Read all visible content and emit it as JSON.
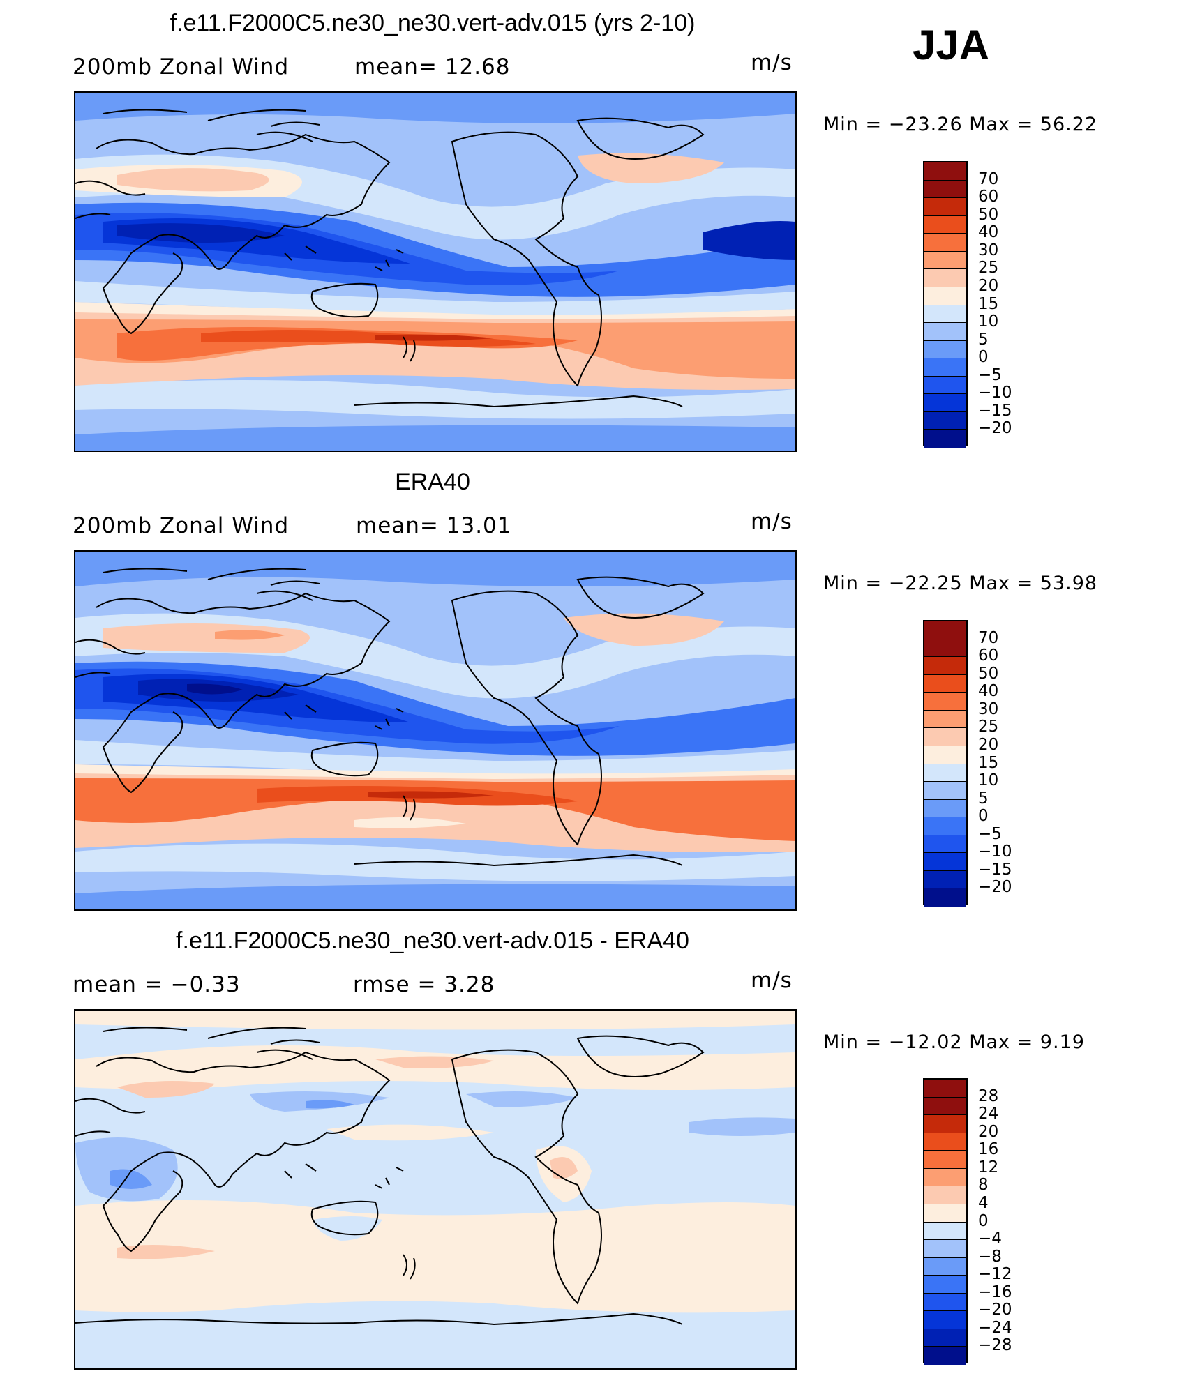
{
  "season": "JJA",
  "colors": {
    "abs_scale": [
      "#000f8c",
      "#0021b4",
      "#0535d8",
      "#1f55ee",
      "#3a74f6",
      "#6a9bf8",
      "#a2c2fa",
      "#d3e6fb",
      "#fdeede",
      "#fccab1",
      "#fc9e72",
      "#f7703c",
      "#ea4e1c",
      "#c52a0a",
      "#8f0f0e"
    ],
    "diff_scale": [
      "#000f8c",
      "#0021b4",
      "#0535d8",
      "#1f55ee",
      "#3a74f6",
      "#6a9bf8",
      "#a2c2fa",
      "#d3e6fb",
      "#fdeede",
      "#fccab1",
      "#fc9e72",
      "#f7703c",
      "#ea4e1c",
      "#c52a0a",
      "#8f0f0e"
    ]
  },
  "panels": [
    {
      "title": "f.e11.F2000C5.ne30_ne30.vert-adv.015 (yrs 2-10)",
      "left_label": "200mb  Zonal  Wind",
      "mid_label": "mean=   12.68",
      "units": "m/s",
      "minmax": "Min  =  −23.26  Max  =     56.22",
      "scale_labels": [
        "70",
        "60",
        "50",
        "40",
        "30",
        "25",
        "20",
        "15",
        "10",
        "5",
        "0",
        "−5",
        "−10",
        "−15",
        "−20"
      ]
    },
    {
      "title": "ERA40",
      "left_label": "200mb  Zonal  Wind",
      "mid_label": "mean=   13.01",
      "units": "m/s",
      "minmax": "Min  =  −22.25  Max  =     53.98",
      "scale_labels": [
        "70",
        "60",
        "50",
        "40",
        "30",
        "25",
        "20",
        "15",
        "10",
        "5",
        "0",
        "−5",
        "−10",
        "−15",
        "−20"
      ]
    },
    {
      "title": "f.e11.F2000C5.ne30_ne30.vert-adv.015 - ERA40",
      "left_label": "mean  =    −0.33",
      "mid_label": "rmse  =     3.28",
      "units": "m/s",
      "minmax": "Min  =  −12.02  Max  =      9.19",
      "scale_labels": [
        "28",
        "24",
        "20",
        "16",
        "12",
        "8",
        "4",
        "0",
        "−4",
        "−8",
        "−12",
        "−16",
        "−20",
        "−24",
        "−28"
      ]
    }
  ],
  "chart_data": [
    {
      "type": "heatmap",
      "title": "f.e11.F2000C5.ne30_ne30.vert-adv.015 (yrs 2-10)",
      "variable": "200mb Zonal Wind",
      "units": "m/s",
      "mean": 12.68,
      "min": -23.26,
      "max": 56.22,
      "season": "JJA",
      "contour_levels": [
        -20,
        -15,
        -10,
        -5,
        0,
        5,
        10,
        15,
        20,
        25,
        30,
        40,
        50,
        60,
        70
      ]
    },
    {
      "type": "heatmap",
      "title": "ERA40",
      "variable": "200mb Zonal Wind",
      "units": "m/s",
      "mean": 13.01,
      "min": -22.25,
      "max": 53.98,
      "season": "JJA",
      "contour_levels": [
        -20,
        -15,
        -10,
        -5,
        0,
        5,
        10,
        15,
        20,
        25,
        30,
        40,
        50,
        60,
        70
      ]
    },
    {
      "type": "heatmap",
      "title": "f.e11.F2000C5.ne30_ne30.vert-adv.015 - ERA40",
      "units": "m/s",
      "mean": -0.33,
      "rmse": 3.28,
      "min": -12.02,
      "max": 9.19,
      "season": "JJA",
      "contour_levels": [
        -28,
        -24,
        -20,
        -16,
        -12,
        -8,
        -4,
        0,
        4,
        8,
        12,
        16,
        20,
        24,
        28
      ]
    }
  ]
}
